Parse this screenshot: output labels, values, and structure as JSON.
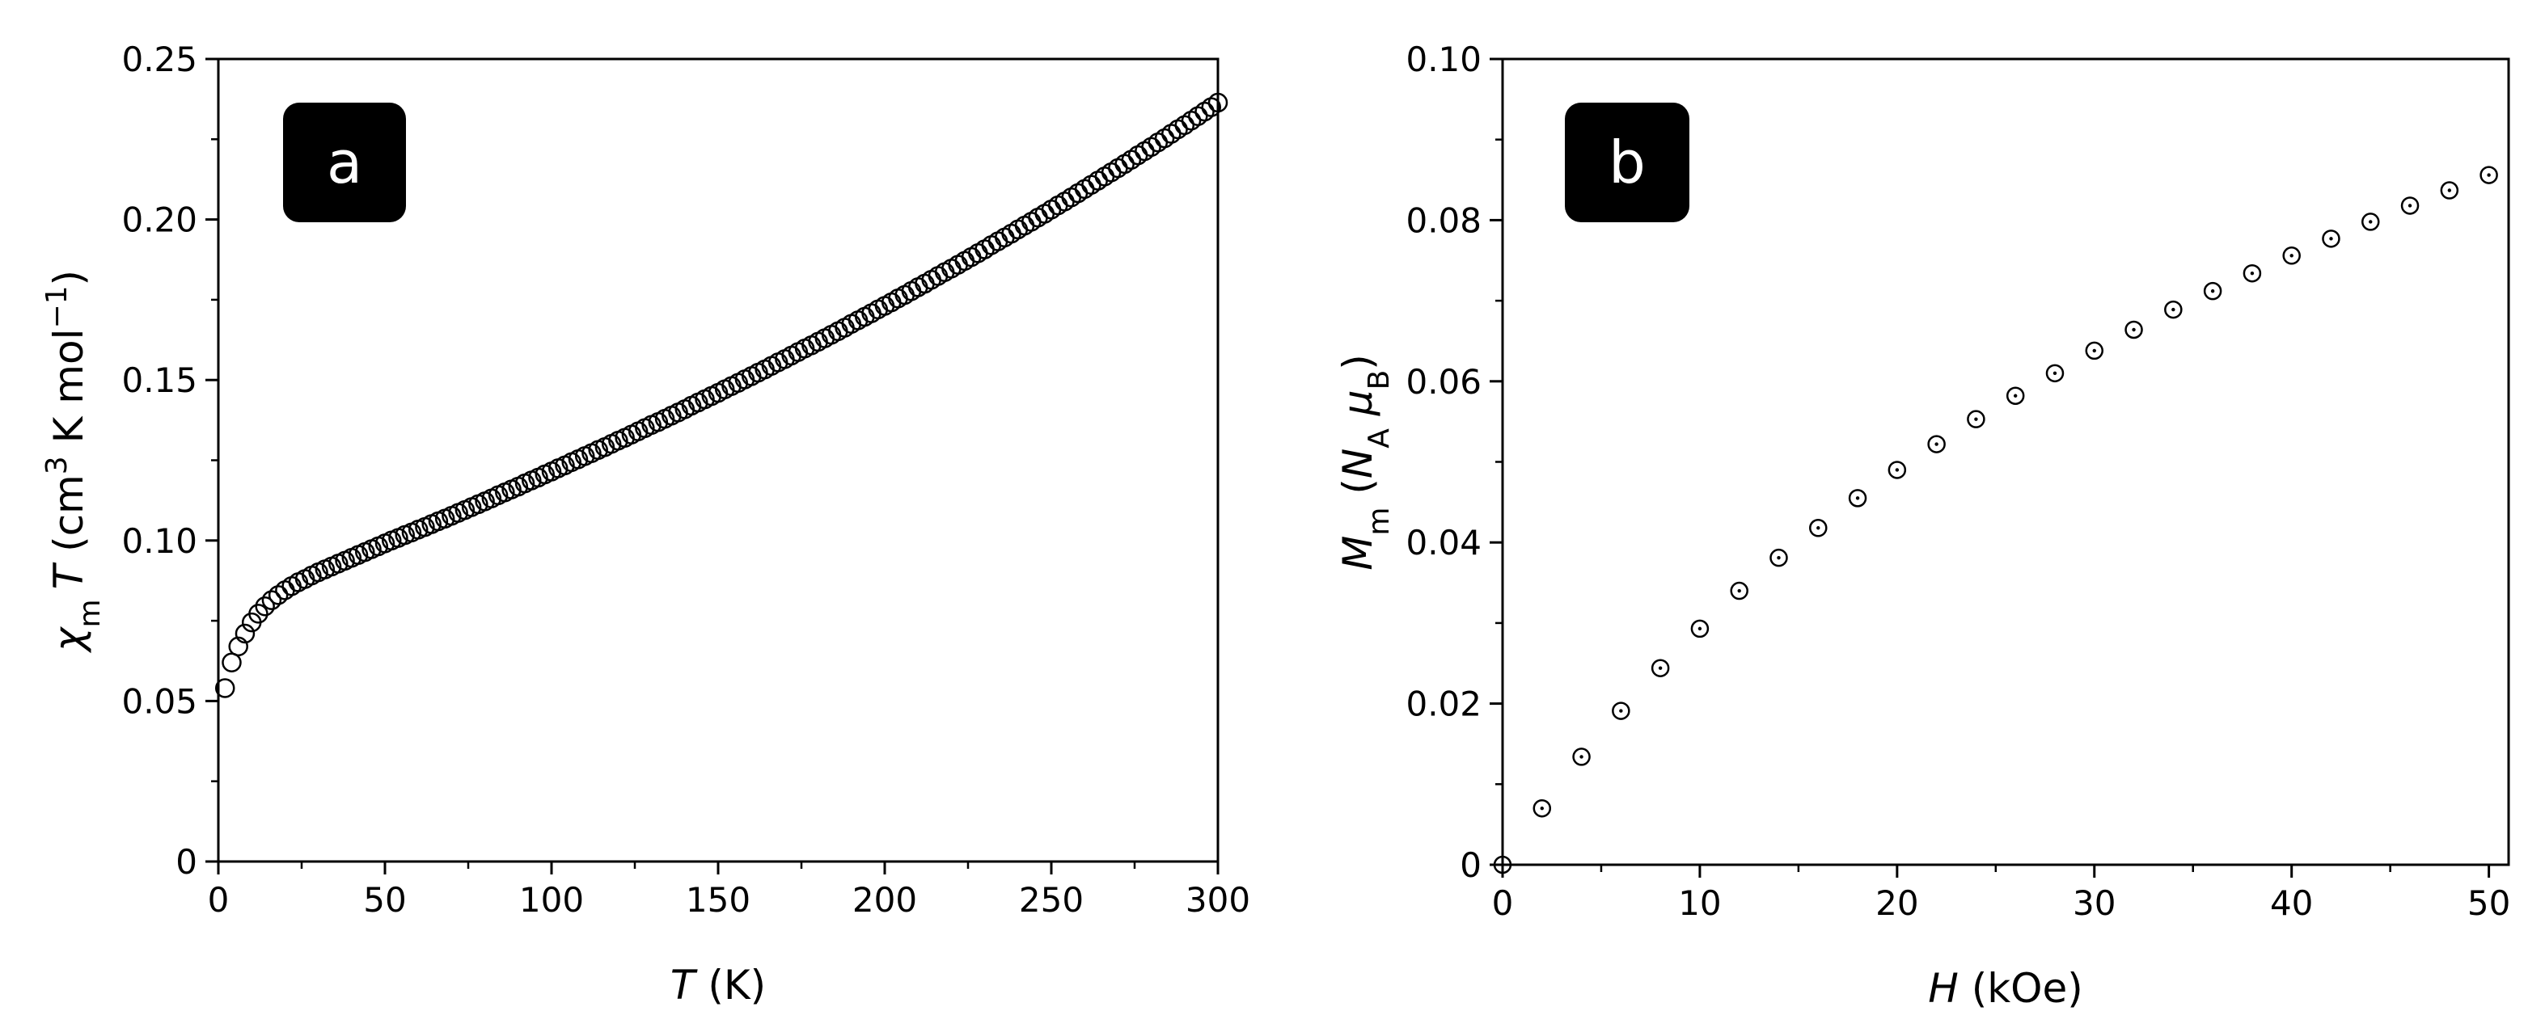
{
  "chart_data": [
    {
      "type": "scatter",
      "panel": "a",
      "xlabel": {
        "symbol": "T",
        "unit": " (K)"
      },
      "ylabel": {
        "chi": "χ",
        "sub": "m",
        "T": "T",
        "open": " (cm",
        "sup3": "3",
        "mid": " K mol",
        "supneg": "−1",
        "close": ")"
      },
      "xlim": [
        0,
        300
      ],
      "ylim": [
        0,
        0.25
      ],
      "xticks": [
        0,
        50,
        100,
        150,
        200,
        250,
        300
      ],
      "yticks": [
        0,
        0.05,
        0.1,
        0.15,
        0.2,
        0.25
      ],
      "xtick_labels": [
        "0",
        "50",
        "100",
        "150",
        "200",
        "250",
        "300"
      ],
      "ytick_labels": [
        "0",
        "0.05",
        "0.10",
        "0.15",
        "0.20",
        "0.25"
      ],
      "marker": "open-circle",
      "series": [
        {
          "x": [
            2,
            4,
            6,
            8,
            10,
            12,
            14,
            16,
            18,
            20,
            22,
            24,
            26,
            28,
            30,
            32,
            34,
            36,
            38,
            40,
            42,
            44,
            46,
            48,
            50,
            52,
            54,
            56,
            58,
            60,
            62,
            64,
            66,
            68,
            70,
            72,
            74,
            76,
            78,
            80,
            82,
            84,
            86,
            88,
            90,
            92,
            94,
            96,
            98,
            100,
            102,
            104,
            106,
            108,
            110,
            112,
            114,
            116,
            118,
            120,
            122,
            124,
            126,
            128,
            130,
            132,
            134,
            136,
            138,
            140,
            142,
            144,
            146,
            148,
            150,
            152,
            154,
            156,
            158,
            160,
            162,
            164,
            166,
            168,
            170,
            172,
            174,
            176,
            178,
            180,
            182,
            184,
            186,
            188,
            190,
            192,
            194,
            196,
            198,
            200,
            202,
            204,
            206,
            208,
            210,
            212,
            214,
            216,
            218,
            220,
            222,
            224,
            226,
            228,
            230,
            232,
            234,
            236,
            238,
            240,
            242,
            244,
            246,
            248,
            250,
            252,
            254,
            256,
            258,
            260,
            262,
            264,
            266,
            268,
            270,
            272,
            274,
            276,
            278,
            280,
            282,
            284,
            286,
            288,
            290,
            292,
            294,
            296,
            298,
            300
          ],
          "y": [
            0.054,
            0.062,
            0.067,
            0.071,
            0.0745,
            0.0772,
            0.0795,
            0.0814,
            0.083,
            0.0845,
            0.0858,
            0.087,
            0.088,
            0.0891,
            0.0901,
            0.091,
            0.0919,
            0.0928,
            0.0937,
            0.0946,
            0.0955,
            0.0964,
            0.0973,
            0.0982,
            0.0991,
            0.1,
            0.1008,
            0.1017,
            0.1025,
            0.1034,
            0.1042,
            0.1051,
            0.106,
            0.1068,
            0.1077,
            0.1086,
            0.1095,
            0.1104,
            0.1113,
            0.1122,
            0.1131,
            0.1141,
            0.115,
            0.1159,
            0.1168,
            0.1178,
            0.1187,
            0.1196,
            0.1206,
            0.1215,
            0.1225,
            0.1234,
            0.1244,
            0.1253,
            0.1263,
            0.1272,
            0.1282,
            0.1291,
            0.1301,
            0.1311,
            0.132,
            0.133,
            0.134,
            0.135,
            0.136,
            0.1369,
            0.1379,
            0.1389,
            0.1399,
            0.1409,
            0.142,
            0.143,
            0.144,
            0.145,
            0.146,
            0.1471,
            0.1481,
            0.1491,
            0.1502,
            0.1512,
            0.1523,
            0.1533,
            0.1544,
            0.1555,
            0.1565,
            0.1576,
            0.1587,
            0.1598,
            0.1608,
            0.1619,
            0.163,
            0.1641,
            0.1652,
            0.1663,
            0.1675,
            0.1686,
            0.1697,
            0.1708,
            0.172,
            0.1731,
            0.1742,
            0.1754,
            0.1765,
            0.1777,
            0.1789,
            0.18,
            0.1812,
            0.1824,
            0.1836,
            0.1847,
            0.1859,
            0.1871,
            0.1883,
            0.1895,
            0.1907,
            0.192,
            0.1932,
            0.1944,
            0.1956,
            0.1969,
            0.1981,
            0.1993,
            0.2006,
            0.2018,
            0.2031,
            0.2044,
            0.2056,
            0.2069,
            0.2082,
            0.2095,
            0.2108,
            0.2121,
            0.2134,
            0.2147,
            0.216,
            0.2173,
            0.2186,
            0.22,
            0.2213,
            0.2226,
            0.224,
            0.2253,
            0.2267,
            0.2281,
            0.2294,
            0.2308,
            0.2322,
            0.2336,
            0.235,
            0.2364
          ]
        }
      ]
    },
    {
      "type": "scatter",
      "panel": "b",
      "xlabel": {
        "symbol": "H",
        "unit": " (kOe)"
      },
      "ylabel": {
        "M": "M",
        "sub": "m",
        "open": " (",
        "N": "N",
        "subA": "A",
        "mu": " μ",
        "subB": "B",
        "close": ")"
      },
      "xlim": [
        0,
        51
      ],
      "ylim": [
        0,
        0.1
      ],
      "xticks": [
        0,
        10,
        20,
        30,
        40,
        50
      ],
      "yticks": [
        0,
        0.02,
        0.04,
        0.06,
        0.08,
        0.1
      ],
      "xtick_labels": [
        "0",
        "10",
        "20",
        "30",
        "40",
        "50"
      ],
      "ytick_labels": [
        "0",
        "0.02",
        "0.04",
        "0.06",
        "0.08",
        "0.10"
      ],
      "marker": "dotted-circle",
      "series": [
        {
          "x": [
            0,
            2,
            4,
            6,
            8,
            10,
            12,
            14,
            16,
            18,
            20,
            22,
            24,
            26,
            28,
            30,
            32,
            34,
            36,
            38,
            40,
            42,
            44,
            46,
            48,
            50
          ],
          "y": [
            0.0,
            0.007,
            0.0134,
            0.0191,
            0.0244,
            0.0293,
            0.034,
            0.0381,
            0.0418,
            0.0455,
            0.049,
            0.0522,
            0.0553,
            0.0582,
            0.061,
            0.0638,
            0.0664,
            0.0689,
            0.0712,
            0.0734,
            0.0756,
            0.0777,
            0.0798,
            0.0818,
            0.0837,
            0.0856
          ]
        }
      ]
    }
  ],
  "panels": {
    "a": {
      "label": "a",
      "bg": "#000000",
      "fg": "#ffffff"
    },
    "b": {
      "label": "b",
      "bg": "#000000",
      "fg": "#ffffff"
    }
  },
  "colors": {
    "axis": "#000000",
    "marker": "#000000",
    "background": "#ffffff"
  }
}
